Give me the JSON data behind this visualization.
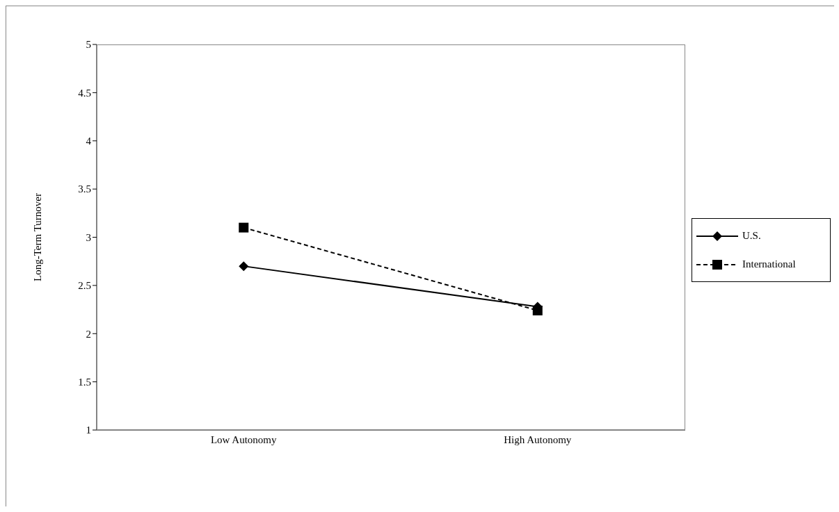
{
  "chart_data": {
    "type": "line",
    "ylabel": "Long-Term Turnover",
    "categories": [
      "Low Autonomy",
      "High Autonomy"
    ],
    "series": [
      {
        "name": "U.S.",
        "color": "#000000",
        "values": [
          2.7,
          2.28
        ],
        "marker": "diamond",
        "line_style": "solid"
      },
      {
        "name": "International",
        "color": "#000000",
        "values": [
          3.1,
          2.24
        ],
        "marker": "square",
        "line_style": "dashed"
      }
    ],
    "ylim": [
      1,
      5
    ],
    "yticks": [
      1,
      1.5,
      2,
      2.5,
      3,
      3.5,
      4,
      4.5,
      5
    ],
    "grid": false,
    "legend": "right"
  }
}
